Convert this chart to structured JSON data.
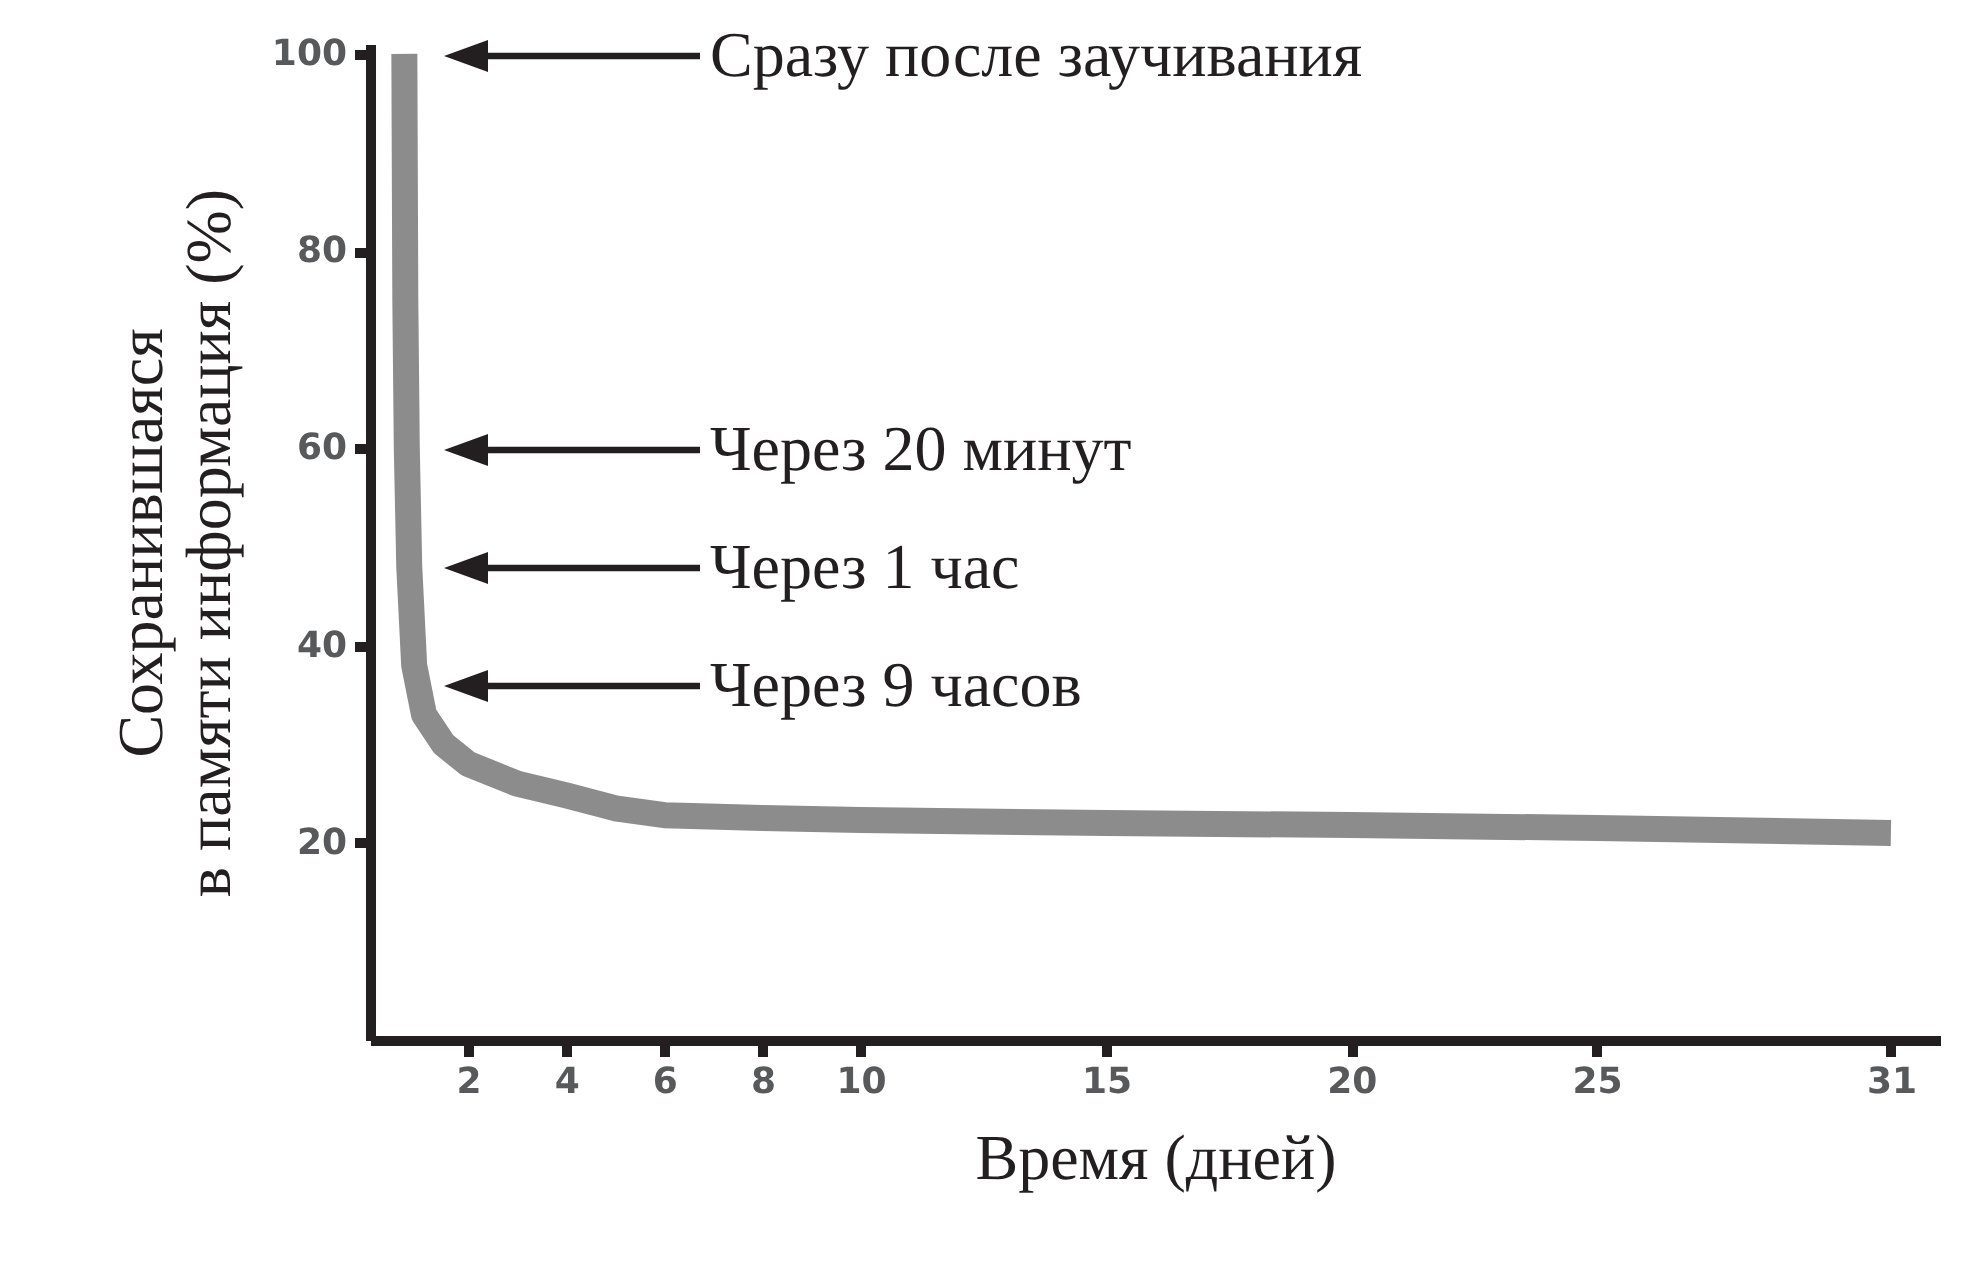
{
  "chart_data": {
    "type": "line",
    "xlabel": "Время (дней)",
    "ylabel": "Сохранившаяся\nв памяти информация (%)",
    "x": [
      0.7,
      0.72,
      0.75,
      0.8,
      0.9,
      1.1,
      1.5,
      2,
      3,
      4,
      5,
      6,
      8,
      10,
      15,
      20,
      25,
      31
    ],
    "series": [
      {
        "color": "#8c8c8c",
        "values": [
          100,
          75,
          60,
          48,
          38,
          33,
          30,
          28,
          26,
          24.8,
          23.5,
          22.8,
          22.5,
          22.3,
          22,
          21.8,
          21.5,
          21
        ]
      }
    ],
    "xlim": [
      0,
      32
    ],
    "xticks": [
      2,
      4,
      6,
      8,
      10,
      15,
      20,
      25,
      31
    ],
    "ylim": [
      0,
      101
    ],
    "yticks": [
      20,
      40,
      60,
      80,
      100
    ],
    "grid": false,
    "marker": "none",
    "line_style": "solid",
    "annotations": [
      "Сразу после заучивания",
      "Через 20 минут",
      "Через 1 час",
      "Через 9 часов"
    ]
  }
}
